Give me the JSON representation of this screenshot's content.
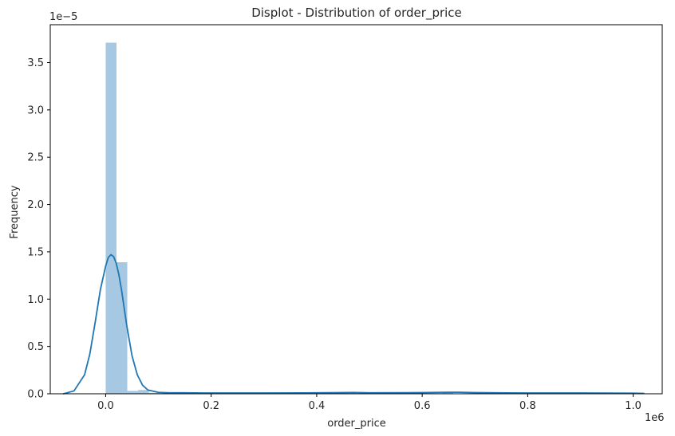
{
  "chart_data": {
    "type": "bar",
    "title": "Displot - Distribution of order_price",
    "xlabel": "order_price",
    "ylabel": "Frequency",
    "x_offset_text": "1e6",
    "y_offset_text": "1e−5",
    "xlim": [
      -0.105,
      1.055
    ],
    "ylim": [
      0,
      3.9
    ],
    "x_ticks": [
      0.0,
      0.2,
      0.4,
      0.6,
      0.8,
      1.0
    ],
    "x_tick_labels": [
      "0.0",
      "0.2",
      "0.4",
      "0.6",
      "0.8",
      "1.0"
    ],
    "y_ticks": [
      0.0,
      0.5,
      1.0,
      1.5,
      2.0,
      2.5,
      3.0,
      3.5
    ],
    "y_tick_labels": [
      "0.0",
      "0.5",
      "1.0",
      "1.5",
      "2.0",
      "2.5",
      "3.0",
      "3.5"
    ],
    "bar_color": "#a6c8e2",
    "line_color": "#1f77b4",
    "bars": [
      {
        "x0": 0.0,
        "x1": 0.0205,
        "value": 3.71
      },
      {
        "x0": 0.0205,
        "x1": 0.041,
        "value": 1.39
      },
      {
        "x0": 0.041,
        "x1": 0.0615,
        "value": 0.03
      },
      {
        "x0": 0.0615,
        "x1": 0.082,
        "value": 0.04
      },
      {
        "x0": 0.082,
        "x1": 0.1025,
        "value": 0.01
      },
      {
        "x0": 0.1025,
        "x1": 0.123,
        "value": 0.005
      },
      {
        "x0": 0.453,
        "x1": 0.4735,
        "value": 0.02
      },
      {
        "x0": 0.638,
        "x1": 0.6585,
        "value": 0.015
      }
    ],
    "kde": {
      "x": [
        -0.08,
        -0.06,
        -0.04,
        -0.03,
        -0.02,
        -0.01,
        0.0,
        0.005,
        0.01,
        0.015,
        0.02,
        0.025,
        0.03,
        0.04,
        0.05,
        0.06,
        0.07,
        0.08,
        0.1,
        0.12,
        0.15,
        0.2,
        0.3,
        0.4,
        0.45,
        0.47,
        0.5,
        0.6,
        0.65,
        0.67,
        0.7,
        0.8,
        0.9,
        1.0,
        1.02
      ],
      "y": [
        0.0,
        0.03,
        0.2,
        0.42,
        0.75,
        1.1,
        1.35,
        1.44,
        1.47,
        1.45,
        1.38,
        1.26,
        1.1,
        0.72,
        0.4,
        0.2,
        0.09,
        0.04,
        0.015,
        0.01,
        0.01,
        0.008,
        0.008,
        0.01,
        0.012,
        0.014,
        0.01,
        0.012,
        0.016,
        0.016,
        0.012,
        0.008,
        0.008,
        0.006,
        0.004
      ]
    }
  }
}
